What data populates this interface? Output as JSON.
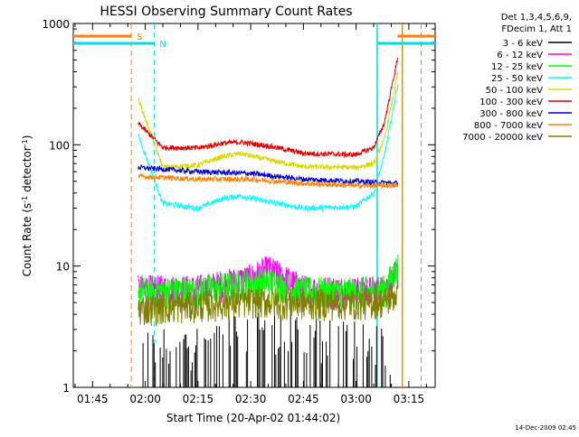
{
  "chart_data": {
    "type": "line",
    "title": "HESSI Observing Summary Count Rates",
    "xlabel": "Start Time (20-Apr-02 01:44:02)",
    "ylabel": "Count Rate (s",
    "ylabel_sup": "-1",
    "ylabel_rest": " detector",
    "ylabel_sup2": "-1",
    "ylabel_end": ")",
    "y_scale": "log",
    "ylim": [
      1,
      1000
    ],
    "xlim": [
      "01:39:30",
      "03:22:30"
    ],
    "x_ticks": [
      "01:45",
      "02:00",
      "02:15",
      "02:30",
      "02:45",
      "03:00",
      "03:15"
    ],
    "y_ticks": [
      "1",
      "10",
      "100",
      "1000"
    ],
    "grid": false,
    "legend_header": [
      "Det 1,3,4,5,6,9,",
      "FDecim 1, Att 1"
    ],
    "footer_stamp": "14-Dec-2009 02:45",
    "markers": {
      "s_label": "S",
      "n_label": "N",
      "saa_start": "01:56:00",
      "night_start": "02:02:30",
      "night_end": "03:06:00",
      "saa_end": "03:18:30",
      "flare_line": "03:13:10"
    },
    "colors": {
      "saa": "#ff8000",
      "night": "#00e0e0",
      "flare": "#c08000"
    },
    "series": [
      {
        "name": "3 - 6 keV",
        "color": "#000000",
        "x": [
          "01:59:00",
          "02:22:00",
          "02:30:00",
          "02:52:00",
          "03:06:00",
          "03:10:00"
        ],
        "values": [
          1.3,
          1.6,
          2.3,
          1.6,
          1.6,
          1.3
        ]
      },
      {
        "name": "6 - 12 keV",
        "color": "#ff00ff",
        "x": [
          "01:58:00",
          "02:15:00",
          "02:30:00",
          "02:35:00",
          "02:45:00",
          "03:00:00",
          "03:08:00",
          "03:12:00"
        ],
        "values": [
          6.5,
          6.5,
          8.0,
          9.5,
          6.5,
          6.3,
          6.5,
          9.0
        ]
      },
      {
        "name": "12 - 25 keV",
        "color": "#00ff00",
        "x": [
          "01:58:00",
          "02:15:00",
          "02:30:00",
          "02:35:00",
          "02:45:00",
          "03:00:00",
          "03:08:00",
          "03:12:00"
        ],
        "values": [
          6.3,
          6.3,
          7.5,
          7.5,
          6.3,
          6.2,
          6.5,
          10.0
        ]
      },
      {
        "name": "25 - 50 keV",
        "color": "#00ffff",
        "x": [
          "01:58:00",
          "02:05:00",
          "02:15:00",
          "02:22:00",
          "02:27:00",
          "02:35:00",
          "02:45:00",
          "03:00:00",
          "03:05:00",
          "03:08:00",
          "03:12:00"
        ],
        "values": [
          120,
          33,
          30,
          36,
          38,
          34,
          30,
          31,
          40,
          80,
          330
        ]
      },
      {
        "name": "50 - 100 keV",
        "color": "#d8d800",
        "x": [
          "01:58:00",
          "02:05:00",
          "02:15:00",
          "02:22:00",
          "02:27:00",
          "02:35:00",
          "02:45:00",
          "03:00:00",
          "03:05:00",
          "03:08:00",
          "03:12:00"
        ],
        "values": [
          240,
          65,
          68,
          80,
          85,
          75,
          66,
          65,
          70,
          110,
          400
        ]
      },
      {
        "name": "100 - 300 keV",
        "color": "#e00000",
        "x": [
          "01:58:00",
          "02:05:00",
          "02:15:00",
          "02:22:00",
          "02:27:00",
          "02:35:00",
          "02:45:00",
          "03:00:00",
          "03:05:00",
          "03:08:00",
          "03:12:00"
        ],
        "values": [
          150,
          95,
          94,
          103,
          105,
          98,
          85,
          83,
          95,
          150,
          550
        ]
      },
      {
        "name": "300 - 800 keV",
        "color": "#0000d0",
        "x": [
          "01:58:00",
          "02:15:00",
          "02:30:00",
          "02:45:00",
          "03:00:00",
          "03:06:00",
          "03:12:00"
        ],
        "values": [
          65,
          60,
          58,
          52,
          50,
          49,
          48
        ]
      },
      {
        "name": "800 - 7000 keV",
        "color": "#ff8000",
        "x": [
          "01:58:00",
          "02:15:00",
          "02:30:00",
          "02:45:00",
          "03:00:00",
          "03:06:00",
          "03:12:00"
        ],
        "values": [
          55,
          52,
          52,
          48,
          46,
          46,
          46
        ]
      },
      {
        "name": "7000 - 20000 keV",
        "color": "#808000",
        "x": [
          "01:58:00",
          "02:15:00",
          "02:30:00",
          "02:45:00",
          "03:00:00",
          "03:08:00",
          "03:12:00"
        ],
        "values": [
          4.5,
          4.8,
          5.2,
          5.0,
          5.0,
          5.2,
          6.0
        ]
      }
    ]
  }
}
